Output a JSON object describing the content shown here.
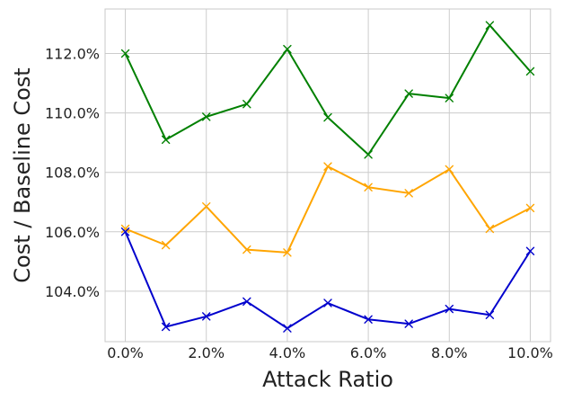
{
  "chart_data": {
    "type": "line",
    "title": "",
    "xlabel": "Attack Ratio",
    "ylabel": "Cost / Baseline Cost",
    "x": [
      0.0,
      1.0,
      2.0,
      3.0,
      4.0,
      5.0,
      6.0,
      7.0,
      8.0,
      9.0,
      10.0
    ],
    "x_tick_values": [
      0,
      2,
      4,
      6,
      8,
      10
    ],
    "x_tick_labels": [
      "0.0%",
      "2.0%",
      "4.0%",
      "6.0%",
      "8.0%",
      "10.0%"
    ],
    "y_tick_values": [
      104,
      106,
      108,
      110,
      112
    ],
    "y_tick_labels": [
      "104.0%",
      "106.0%",
      "108.0%",
      "110.0%",
      "112.0%"
    ],
    "xlim": [
      -0.5,
      10.5
    ],
    "ylim": [
      102.3,
      113.5
    ],
    "grid": true,
    "marker": "x",
    "series": [
      {
        "color": "#008000",
        "values": [
          112.0,
          109.1,
          109.87,
          110.3,
          112.15,
          109.85,
          108.6,
          110.65,
          110.5,
          112.95,
          111.4
        ]
      },
      {
        "color": "#FFA500",
        "values": [
          106.1,
          105.55,
          106.85,
          105.4,
          105.3,
          108.2,
          107.5,
          107.3,
          108.1,
          106.1,
          106.8
        ]
      },
      {
        "color": "#0000CD",
        "values": [
          106.0,
          102.8,
          103.15,
          103.65,
          102.75,
          103.6,
          103.05,
          102.9,
          103.4,
          103.2,
          105.35
        ]
      }
    ]
  }
}
